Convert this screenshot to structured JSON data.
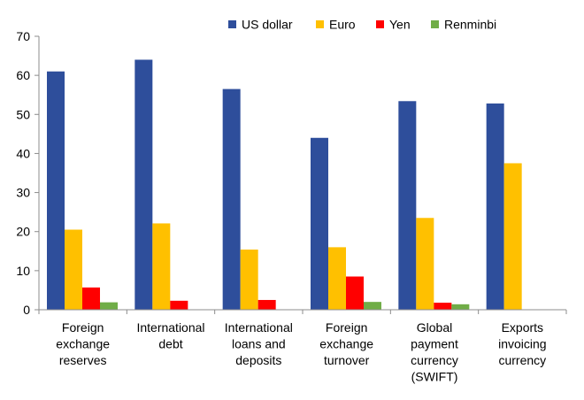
{
  "chart_data": {
    "type": "bar",
    "categories": [
      [
        "Foreign",
        "exchange",
        "reserves"
      ],
      [
        "International",
        "debt"
      ],
      [
        "International",
        "loans and",
        "deposits"
      ],
      [
        "Foreign",
        "exchange",
        "turnover"
      ],
      [
        "Global",
        "payment",
        "currency",
        "(SWIFT)"
      ],
      [
        "Exports",
        "invoicing",
        "currency"
      ]
    ],
    "series": [
      {
        "name": "US dollar",
        "color": "#2E4E9B",
        "values": [
          61,
          64,
          56.5,
          44,
          53.4,
          52.8
        ]
      },
      {
        "name": "Euro",
        "color": "#FFC000",
        "values": [
          20.5,
          22.1,
          15.4,
          16,
          23.5,
          37.5
        ]
      },
      {
        "name": "Yen",
        "color": "#FF0000",
        "values": [
          5.7,
          2.3,
          2.5,
          8.5,
          1.8,
          null
        ]
      },
      {
        "name": "Renminbi",
        "color": "#70AD47",
        "values": [
          1.9,
          null,
          null,
          2,
          1.4,
          null
        ]
      }
    ],
    "ylim": [
      0,
      70
    ],
    "yticks": [
      0,
      10,
      20,
      30,
      40,
      50,
      60,
      70
    ],
    "title": "",
    "xlabel": "",
    "ylabel": "",
    "legend_position": "top",
    "grid": false
  }
}
